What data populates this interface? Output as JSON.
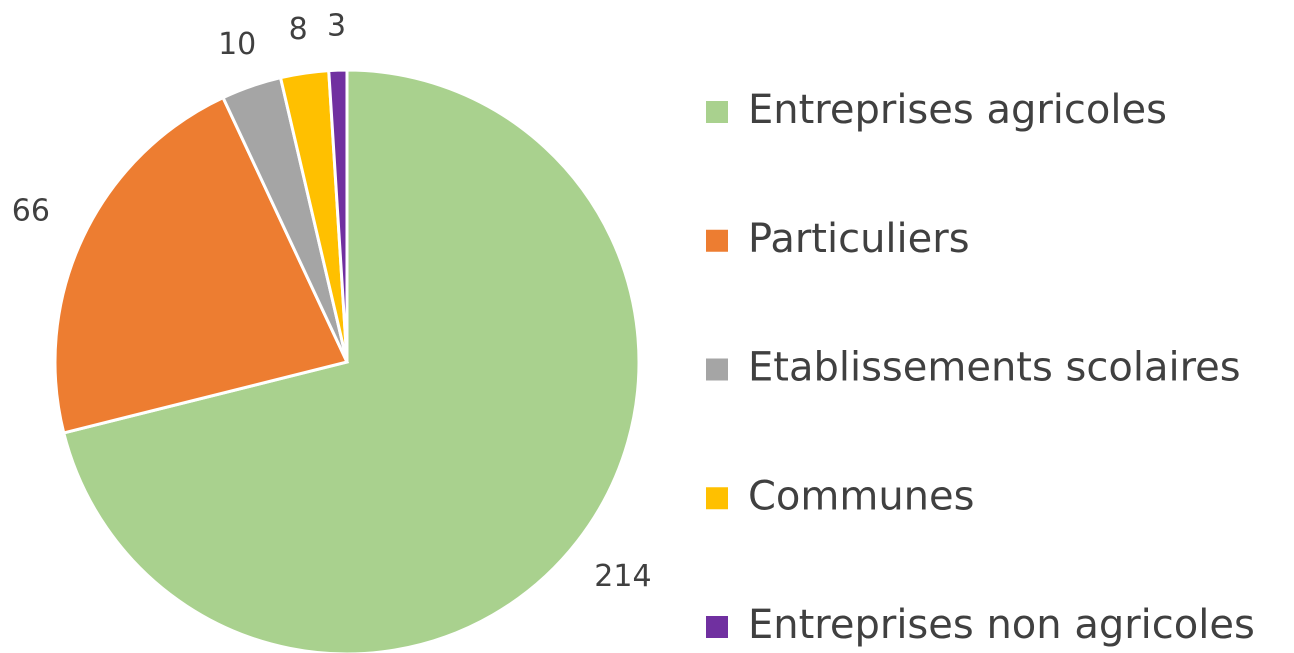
{
  "chart_data": {
    "type": "pie",
    "categories": [
      "Entreprises agricoles",
      "Particuliers",
      "Etablissements scolaires",
      "Communes",
      "Entreprises non agricoles"
    ],
    "values": [
      214,
      66,
      10,
      8,
      3
    ],
    "colors": [
      "#a9d18e",
      "#ed7d31",
      "#a5a5a5",
      "#ffc000",
      "#7030a0"
    ],
    "legend": "right"
  }
}
